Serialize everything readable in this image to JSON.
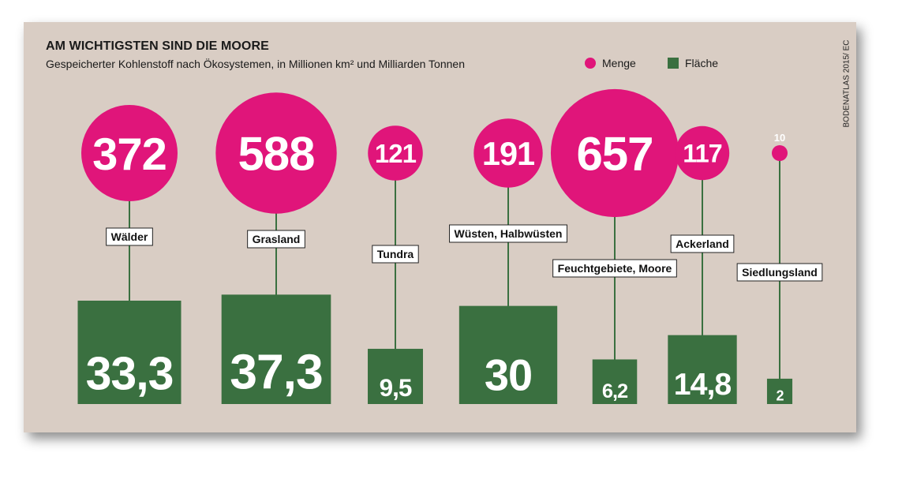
{
  "title": "AM WICHTIGSTEN SIND DIE MOORE",
  "subtitle": "Gespeicherter Kohlenstoff nach Ökosystemen, in Millionen km² und Milliarden Tonnen",
  "source": "BODENATLAS 2015/ EC",
  "legend": {
    "menge": "Menge",
    "flaeche": "Fläche"
  },
  "colors": {
    "menge": "#e0157a",
    "flaeche": "#3a7040",
    "background": "#d9cdc4",
    "stem": "#3a7040"
  },
  "chart_data": {
    "type": "bar",
    "title": "AM WICHTIGSTEN SIND DIE MOORE",
    "categories": [
      "Wälder",
      "Grasland",
      "Tundra",
      "Wüsten, Halbwüsten",
      "Feuchtgebiete, Moore",
      "Ackerland",
      "Siedlungsland"
    ],
    "series": [
      {
        "name": "Menge",
        "values": [
          372,
          588,
          121,
          191,
          657,
          117,
          10
        ],
        "labels": [
          "372",
          "588",
          "121",
          "191",
          "657",
          "117",
          "10"
        ]
      },
      {
        "name": "Fläche",
        "values": [
          33.3,
          37.3,
          9.5,
          30,
          6.2,
          14.8,
          2
        ],
        "labels": [
          "33,3",
          "37,3",
          "9,5",
          "30",
          "6,2",
          "14,8",
          "2"
        ]
      }
    ],
    "grid": false,
    "legend_position": "top-right"
  }
}
